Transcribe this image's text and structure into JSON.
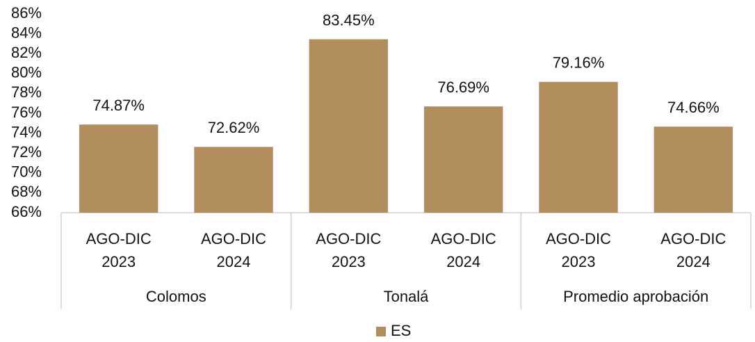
{
  "chart_data": {
    "type": "bar",
    "groups": [
      {
        "name": "Colomos",
        "categories": [
          "AGO-DIC 2023",
          "AGO-DIC 2024"
        ]
      },
      {
        "name": "Tonalá",
        "categories": [
          "AGO-DIC 2023",
          "AGO-DIC 2024"
        ]
      },
      {
        "name": "Promedio aprobación",
        "categories": [
          "AGO-DIC 2023",
          "AGO-DIC 2024"
        ]
      }
    ],
    "series": [
      {
        "name": "ES",
        "color": "#b18e5c",
        "values": [
          74.87,
          72.62,
          83.45,
          76.69,
          79.16,
          74.66
        ],
        "value_labels": [
          "74.87%",
          "72.62%",
          "83.45%",
          "76.69%",
          "79.16%",
          "74.66%"
        ]
      }
    ],
    "ylim": [
      66,
      86
    ],
    "yticks": [
      {
        "value": 66,
        "label": "66%"
      },
      {
        "value": 68,
        "label": "68%"
      },
      {
        "value": 70,
        "label": "70%"
      },
      {
        "value": 72,
        "label": "72%"
      },
      {
        "value": 74,
        "label": "74%"
      },
      {
        "value": 76,
        "label": "76%"
      },
      {
        "value": 78,
        "label": "78%"
      },
      {
        "value": 80,
        "label": "80%"
      },
      {
        "value": 82,
        "label": "82%"
      },
      {
        "value": 84,
        "label": "84%"
      },
      {
        "value": 86,
        "label": "86%"
      }
    ],
    "grid": false,
    "legend": "bottom"
  }
}
